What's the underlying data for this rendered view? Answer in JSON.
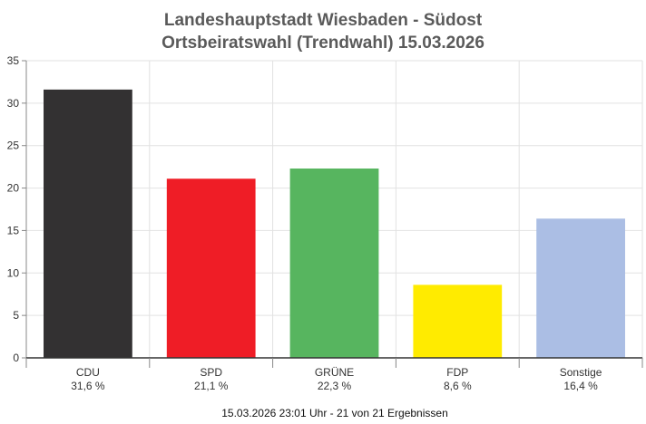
{
  "title_line1": "Landeshauptstadt Wiesbaden - Südost",
  "title_line2": "Ortsbeiratswahl (Trendwahl) 15.03.2026",
  "footer": "15.03.2026 23:01 Uhr - 21 von 21 Ergebnissen",
  "chart_data": {
    "type": "bar",
    "categories": [
      "CDU",
      "SPD",
      "GRÜNE",
      "FDP",
      "Sonstige"
    ],
    "values": [
      31.6,
      21.1,
      22.3,
      8.6,
      16.4
    ],
    "value_labels": [
      "31,6 %",
      "21,1 %",
      "22,3 %",
      "8,6 %",
      "16,4 %"
    ],
    "colors": [
      "#333132",
      "#ef1d26",
      "#57b55f",
      "#ffeb00",
      "#abbee4"
    ],
    "ylim": [
      0,
      35
    ],
    "yticks": [
      0,
      5,
      10,
      15,
      20,
      25,
      30,
      35
    ],
    "grid": true,
    "xlabel": "",
    "ylabel": ""
  }
}
